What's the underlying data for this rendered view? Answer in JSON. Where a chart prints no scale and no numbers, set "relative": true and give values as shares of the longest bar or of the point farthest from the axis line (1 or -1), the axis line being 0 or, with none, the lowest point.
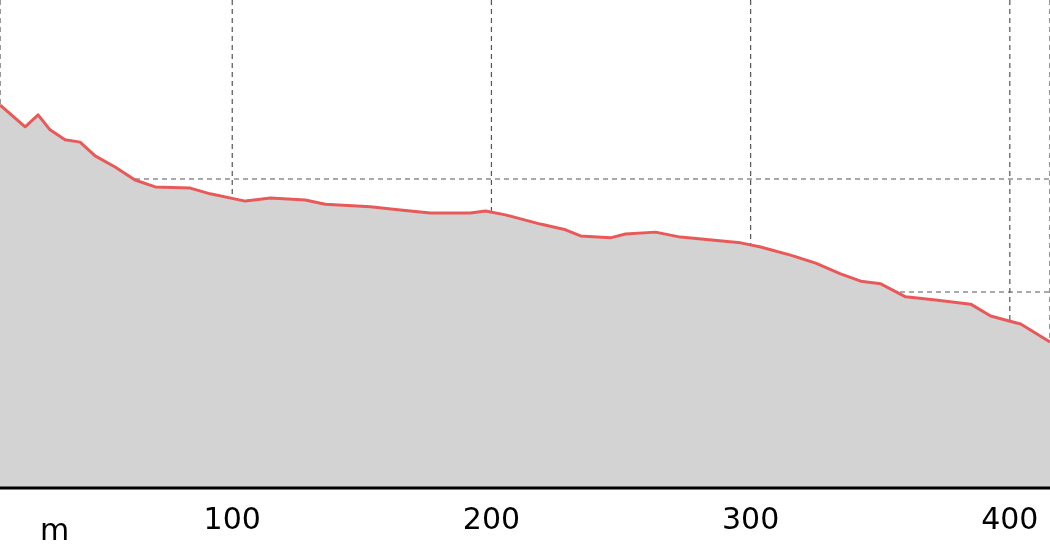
{
  "chart_data": {
    "type": "area",
    "relative": true,
    "xlabel": "m",
    "x": [
      10.4,
      20.1,
      25.1,
      29.7,
      35.5,
      41.3,
      47.1,
      54.8,
      62.5,
      70.3,
      83.8,
      91.5,
      105.0,
      114.7,
      128.2,
      135.9,
      153.3,
      164.9,
      176.4,
      191.9,
      197.7,
      205.4,
      218.9,
      228.6,
      234.4,
      245.9,
      251.7,
      263.3,
      272.9,
      296.1,
      303.9,
      315.4,
      325.1,
      334.7,
      342.5,
      350.2,
      359.8,
      371.4,
      384.9,
      392.6,
      404.2,
      415.5
    ],
    "series": [
      {
        "color": "#e85a5a",
        "values": [
          1.0,
          0.943,
          0.974,
          0.935,
          0.909,
          0.903,
          0.867,
          0.838,
          0.804,
          0.786,
          0.783,
          0.768,
          0.749,
          0.757,
          0.752,
          0.741,
          0.734,
          0.726,
          0.718,
          0.718,
          0.723,
          0.713,
          0.689,
          0.674,
          0.658,
          0.653,
          0.663,
          0.668,
          0.655,
          0.64,
          0.629,
          0.608,
          0.587,
          0.559,
          0.54,
          0.533,
          0.499,
          0.491,
          0.48,
          0.449,
          0.428,
          0.381
        ]
      }
    ],
    "xlim": [
      10.4,
      415.5
    ],
    "xticks": [
      100,
      200,
      300,
      400
    ],
    "grid": true,
    "tick_labels": "x"
  }
}
